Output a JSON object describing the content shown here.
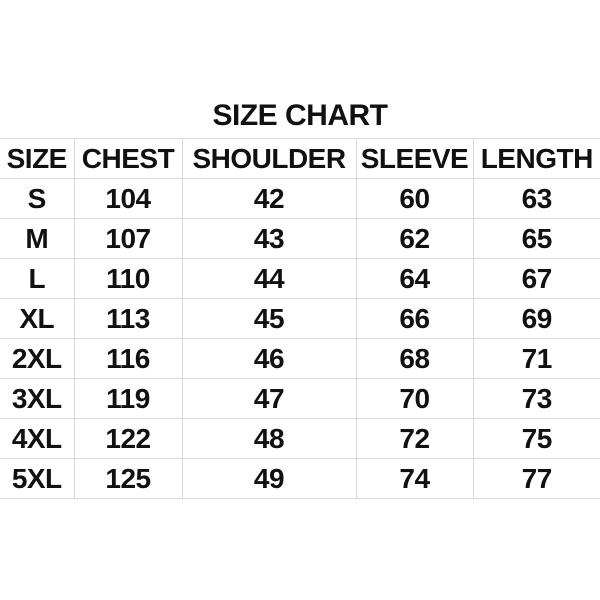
{
  "title": "SIZE CHART",
  "colors": {
    "background": "#ffffff",
    "text": "#111111",
    "gridline": "#d9d9d9"
  },
  "chart_data": {
    "type": "table",
    "title": "SIZE CHART",
    "columns": [
      "SIZE",
      "CHEST",
      "SHOULDER",
      "SLEEVE",
      "LENGTH"
    ],
    "rows": [
      [
        "S",
        "104",
        "42",
        "60",
        "63"
      ],
      [
        "M",
        "107",
        "43",
        "62",
        "65"
      ],
      [
        "L",
        "110",
        "44",
        "64",
        "67"
      ],
      [
        "XL",
        "113",
        "45",
        "66",
        "69"
      ],
      [
        "2XL",
        "116",
        "46",
        "68",
        "71"
      ],
      [
        "3XL",
        "119",
        "47",
        "70",
        "73"
      ],
      [
        "4XL",
        "122",
        "48",
        "72",
        "75"
      ],
      [
        "5XL",
        "125",
        "49",
        "74",
        "77"
      ]
    ]
  }
}
